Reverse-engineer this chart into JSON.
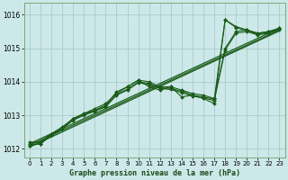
{
  "background_color": "#cde8e8",
  "grid_color": "#aacccc",
  "line_color": "#1a5c1a",
  "title": "Graphe pression niveau de la mer (hPa)",
  "xlim": [
    -0.5,
    23.5
  ],
  "ylim": [
    1011.75,
    1016.35
  ],
  "yticks": [
    1012,
    1013,
    1014,
    1015,
    1016
  ],
  "xticks": [
    0,
    1,
    2,
    3,
    4,
    5,
    6,
    7,
    8,
    9,
    10,
    11,
    12,
    13,
    14,
    15,
    16,
    17,
    18,
    19,
    20,
    21,
    22,
    23
  ],
  "series": [
    [
      1012.2,
      1012.2,
      1012.45,
      1012.6,
      1012.9,
      1013.05,
      1013.15,
      1013.3,
      1013.7,
      1013.85,
      1014.05,
      1013.85,
      1013.75,
      1013.85,
      1013.55,
      1013.6,
      1013.5,
      1013.35,
      1015.85,
      1015.65,
      1015.55,
      1015.45,
      1015.5,
      1015.6
    ],
    [
      1012.15,
      1012.2,
      1012.45,
      1012.65,
      1012.9,
      1013.05,
      1013.2,
      1013.35,
      1013.65,
      1013.85,
      1014.05,
      1014.0,
      1013.85,
      1013.85,
      1013.75,
      1013.65,
      1013.6,
      1013.5,
      1015.0,
      1015.5,
      1015.55,
      1015.45,
      1015.5,
      1015.6
    ],
    [
      1012.1,
      1012.15,
      1012.4,
      1012.62,
      1012.88,
      1013.02,
      1013.15,
      1013.28,
      1013.62,
      1013.78,
      1014.0,
      1013.95,
      1013.82,
      1013.8,
      1013.72,
      1013.6,
      1013.55,
      1013.48,
      1015.85,
      1015.62,
      1015.52,
      1015.42,
      1015.48,
      1015.58
    ],
    [
      1012.1,
      1012.15,
      1012.4,
      1012.6,
      1012.85,
      1013.0,
      1013.12,
      1013.25,
      1013.6,
      1013.75,
      1013.97,
      1013.92,
      1013.8,
      1013.77,
      1013.68,
      1013.57,
      1013.52,
      1013.44,
      1014.95,
      1015.45,
      1015.5,
      1015.4,
      1015.45,
      1015.55
    ]
  ],
  "straight_lines": [
    [
      [
        0,
        23
      ],
      [
        1012.15,
        1015.6
      ]
    ],
    [
      [
        0,
        23
      ],
      [
        1012.1,
        1015.55
      ]
    ],
    [
      [
        0,
        23
      ],
      [
        1012.05,
        1015.52
      ]
    ]
  ]
}
